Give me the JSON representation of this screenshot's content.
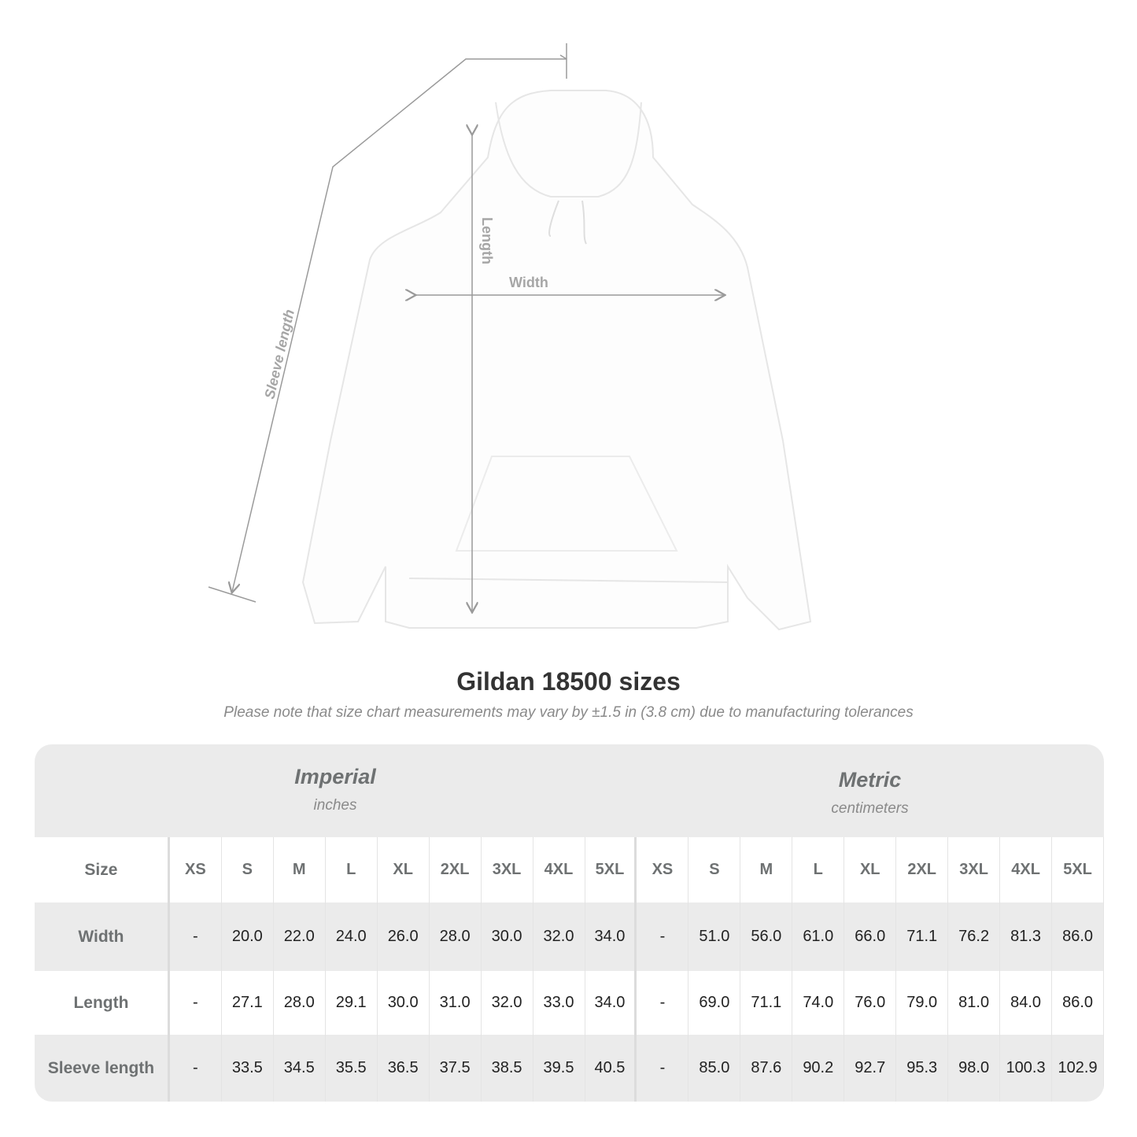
{
  "illustration": {
    "labels": {
      "sleeve": "Sleeve length",
      "length": "Length",
      "width": "Width"
    },
    "line_color": "#9a9a9a"
  },
  "title": "Gildan 18500 sizes",
  "subtitle": "Please note that size chart measurements may vary by ±1.5 in (3.8 cm) due to manufacturing tolerances",
  "table": {
    "imperial": {
      "name": "Imperial",
      "unit": "inches"
    },
    "metric": {
      "name": "Metric",
      "unit": "centimeters"
    },
    "size_label": "Size",
    "sizes": [
      "XS",
      "S",
      "M",
      "L",
      "XL",
      "2XL",
      "3XL",
      "4XL",
      "5XL"
    ],
    "rows": [
      {
        "label": "Width",
        "imperial": [
          "-",
          "20.0",
          "22.0",
          "24.0",
          "26.0",
          "28.0",
          "30.0",
          "32.0",
          "34.0"
        ],
        "metric": [
          "-",
          "51.0",
          "56.0",
          "61.0",
          "66.0",
          "71.1",
          "76.2",
          "81.3",
          "86.0"
        ]
      },
      {
        "label": "Length",
        "imperial": [
          "-",
          "27.1",
          "28.0",
          "29.1",
          "30.0",
          "31.0",
          "32.0",
          "33.0",
          "34.0"
        ],
        "metric": [
          "-",
          "69.0",
          "71.1",
          "74.0",
          "76.0",
          "79.0",
          "81.0",
          "84.0",
          "86.0"
        ]
      },
      {
        "label": "Sleeve length",
        "imperial": [
          "-",
          "33.5",
          "34.5",
          "35.5",
          "36.5",
          "37.5",
          "38.5",
          "39.5",
          "40.5"
        ],
        "metric": [
          "-",
          "85.0",
          "87.6",
          "90.2",
          "92.7",
          "95.3",
          "98.0",
          "100.3",
          "102.9"
        ]
      }
    ],
    "colors": {
      "band": "#ebebeb",
      "header_text": "#6e7172",
      "value_text": "#222222"
    }
  }
}
